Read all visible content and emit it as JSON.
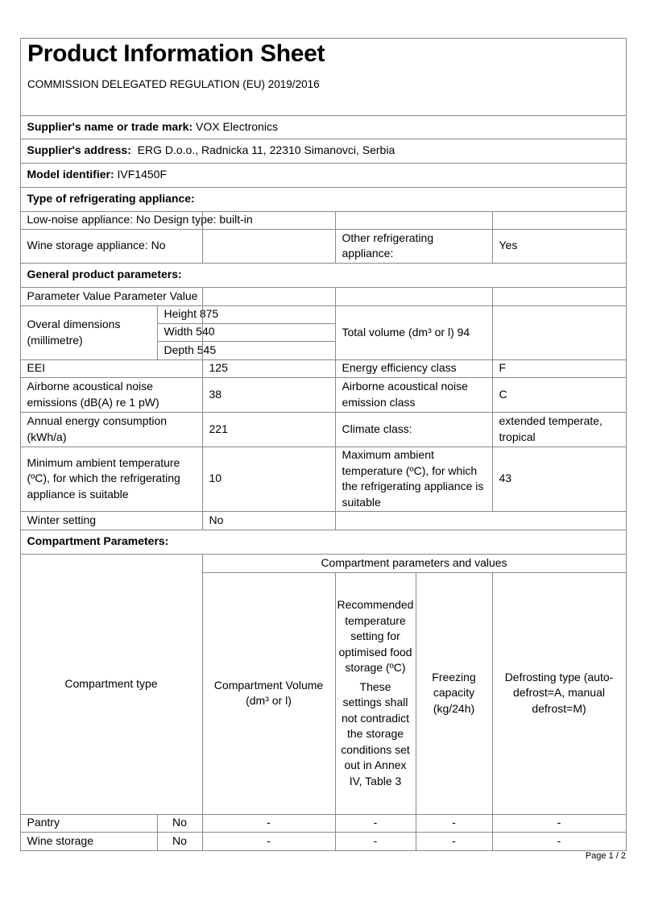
{
  "title": "Product Information Sheet",
  "subtitle": "COMMISSION DELEGATED REGULATION (EU) 2019/2016",
  "supplier_name": {
    "label": "Supplier's name or trade mark:",
    "value": " VOX Electronics"
  },
  "supplier_address": {
    "label": "Supplier's address:",
    "value": "  ERG D.o.o., Radnicka 11, 22310 Simanovci, Serbia"
  },
  "model": {
    "label": "Model identifier:",
    "value": " IVF1450F"
  },
  "type_heading": "Type of refrigerating appliance:",
  "low_noise": "Low-noise appliance: No Design type: built-in",
  "wine_storage_appliance": "Wine storage appliance: No",
  "other_refrigerating": {
    "label": "Other  refrigerating appliance:",
    "value": "Yes"
  },
  "general_heading": "General product parameters:",
  "param_header": "Parameter Value Parameter Value",
  "dimensions": {
    "label": "Overal dimensions (millimetre)",
    "height": "Height 875",
    "width": "Width 540",
    "depth": "Depth 545"
  },
  "total_volume": "Total volume (dm³ or l) 94",
  "eei": {
    "label": "EEI",
    "value": "125"
  },
  "energy_class": {
    "label": "Energy efficiency class",
    "value": "F"
  },
  "noise": {
    "label": "Airborne acoustical noise emissions (dB(A) re 1 pW)",
    "value": "38"
  },
  "noise_class": {
    "label": "Airborne acoustical noise emission class",
    "value": "C"
  },
  "annual_energy": {
    "label": "Annual energy consumption (kWh/a)",
    "value": "221"
  },
  "climate": {
    "label": "Climate class:",
    "value": "extended temperate, tropical"
  },
  "min_ambient": {
    "label": "Minimum ambient temperature (ºC), for which the refrigerating appliance is suitable",
    "value": "10"
  },
  "max_ambient": {
    "label": "Maximum ambient temperature (ºC), for which the refrigerating appliance is suitable",
    "value": "43"
  },
  "winter": {
    "label": "Winter setting",
    "value": "No"
  },
  "compartment_heading": "Compartment Parameters:",
  "compartment_table": {
    "type_header": "Compartment type",
    "group_header": "Compartment parameters and values",
    "volume_header": "Compartment Volume (dm³ or l)",
    "temp_header": "Recommended temperature setting for optimised food storage (ºC)",
    "temp_note": "These settings shall not contradict the storage conditions set out in Annex IV, Table 3",
    "freezing_header": "Freezing capacity (kg/24h)",
    "defrost_header": "Defrosting type (auto-defrost=A, manual defrost=M)",
    "rows": [
      {
        "name": "Pantry",
        "present": "No",
        "volume": "-",
        "temp": "-",
        "freezing": "-",
        "defrost": "-"
      },
      {
        "name": "Wine storage",
        "present": "No",
        "volume": "-",
        "temp": "-",
        "freezing": "-",
        "defrost": "-"
      }
    ]
  },
  "page_number": "Page 1 / 2"
}
